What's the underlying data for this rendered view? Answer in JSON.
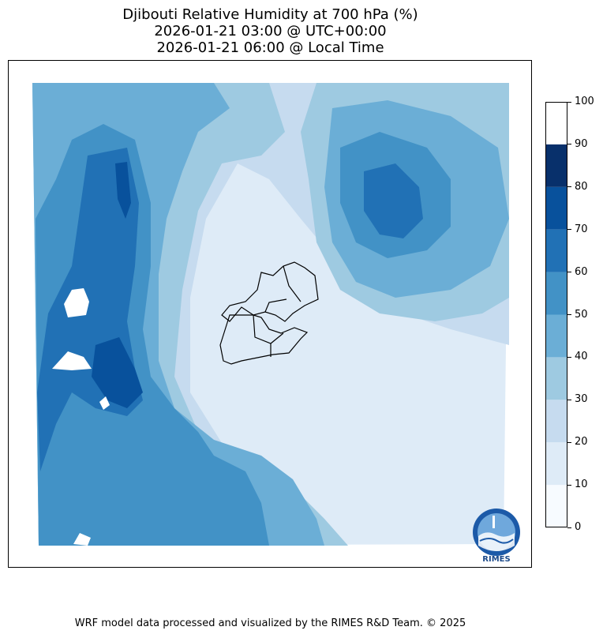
{
  "title": {
    "line1": "Djibouti Relative Humidity at 700 hPa (%)",
    "line2": "2026-01-21 03:00 @ UTC+00:00",
    "line3": "2026-01-21 06:00 @ Local Time"
  },
  "colorbar": {
    "ticks": [
      "0",
      "10",
      "20",
      "30",
      "40",
      "50",
      "60",
      "70",
      "80",
      "90",
      "100"
    ],
    "colors": [
      "#f7fbff",
      "#deebf7",
      "#c6dbef",
      "#9ecae1",
      "#6baed6",
      "#4292c6",
      "#2171b5",
      "#08519c",
      "#08306b"
    ],
    "levels": [
      0,
      10,
      20,
      30,
      40,
      50,
      60,
      70,
      80,
      90,
      100
    ]
  },
  "logo": {
    "text": "RIMES"
  },
  "footer": "WRF model data processed and visualized by the RIMES R&D Team. © 2025"
}
